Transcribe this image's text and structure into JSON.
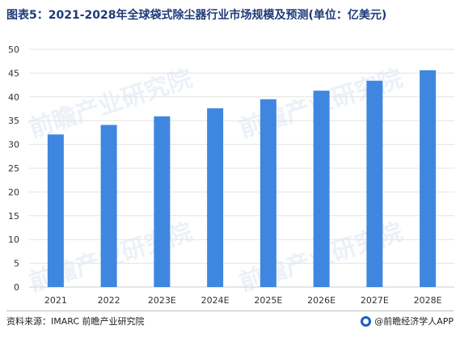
{
  "title": "图表5：2021-2028年全球袋式除尘器行业市场规模及预测(单位：亿美元)",
  "source": "资料来源：IMARC 前瞻产业研究院",
  "brand": {
    "label": "@前瞻经济学人APP",
    "icon": "qianzhan-logo-icon"
  },
  "watermark": "前瞻产业研究院",
  "colors": {
    "bar": "#3f86e0",
    "grid": "#e3e3e3",
    "axis": "#cfcfcf"
  },
  "chart_data": {
    "type": "bar",
    "categories": [
      "2021",
      "2022",
      "2023E",
      "2024E",
      "2025E",
      "2026E",
      "2027E",
      "2028E"
    ],
    "values": [
      32.1,
      34.1,
      35.9,
      37.6,
      39.5,
      41.3,
      43.4,
      45.6
    ],
    "yticks": [
      "0",
      "5",
      "10",
      "15",
      "20",
      "25",
      "30",
      "35",
      "40",
      "45",
      "50"
    ],
    "ylim": [
      0,
      50
    ],
    "grid": true,
    "legend": "none"
  }
}
